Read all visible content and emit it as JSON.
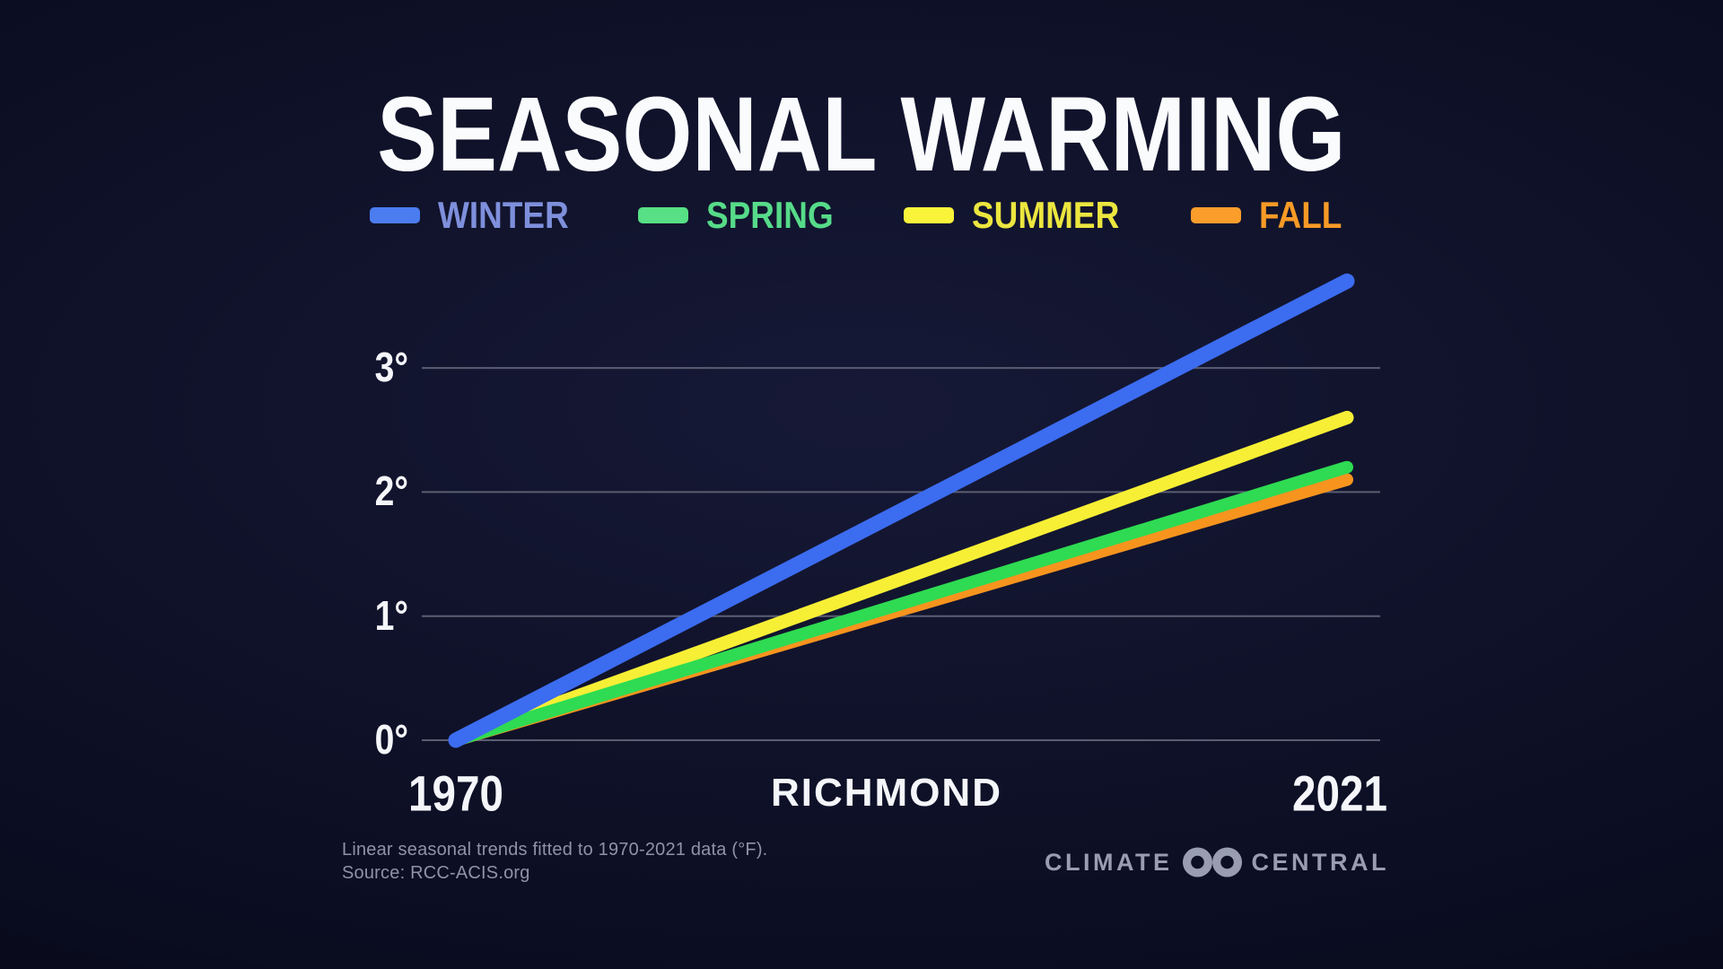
{
  "title": "SEASONAL WARMING",
  "chart_data": {
    "type": "line",
    "title": "SEASONAL WARMING",
    "location": "RICHMOND",
    "x_years": [
      1970,
      2021
    ],
    "x_tick_labels": [
      "1970",
      "2021"
    ],
    "y_tick_values": [
      0,
      1,
      2,
      3
    ],
    "y_tick_labels": [
      "0°",
      "1°",
      "2°",
      "3°"
    ],
    "ylim": [
      0,
      3.9
    ],
    "grid": true,
    "grid_color": "#5a5e72",
    "legend_position": "top-center",
    "series": [
      {
        "name": "WINTER",
        "values": [
          0,
          3.7
        ],
        "color": "#3c6cf0",
        "label_color": "#7e90dc",
        "swatch_color": "#4b7cf0"
      },
      {
        "name": "SPRING",
        "values": [
          0,
          2.2
        ],
        "color": "#2edb52",
        "label_color": "#56db89",
        "swatch_color": "#57e085"
      },
      {
        "name": "SUMMER",
        "values": [
          0,
          2.6
        ],
        "color": "#f7ef35",
        "label_color": "#ece63f",
        "swatch_color": "#f9f43a"
      },
      {
        "name": "FALL",
        "values": [
          0,
          2.1
        ],
        "color": "#f7941e",
        "label_color": "#f79a26",
        "swatch_color": "#fa9d2b"
      }
    ]
  },
  "footer": {
    "line1": "Linear seasonal trends fitted to 1970-2021 data (°F).",
    "line2": "Source: RCC-ACIS.org"
  },
  "branding": {
    "left": "CLIMATE",
    "right": "CENTRAL"
  }
}
